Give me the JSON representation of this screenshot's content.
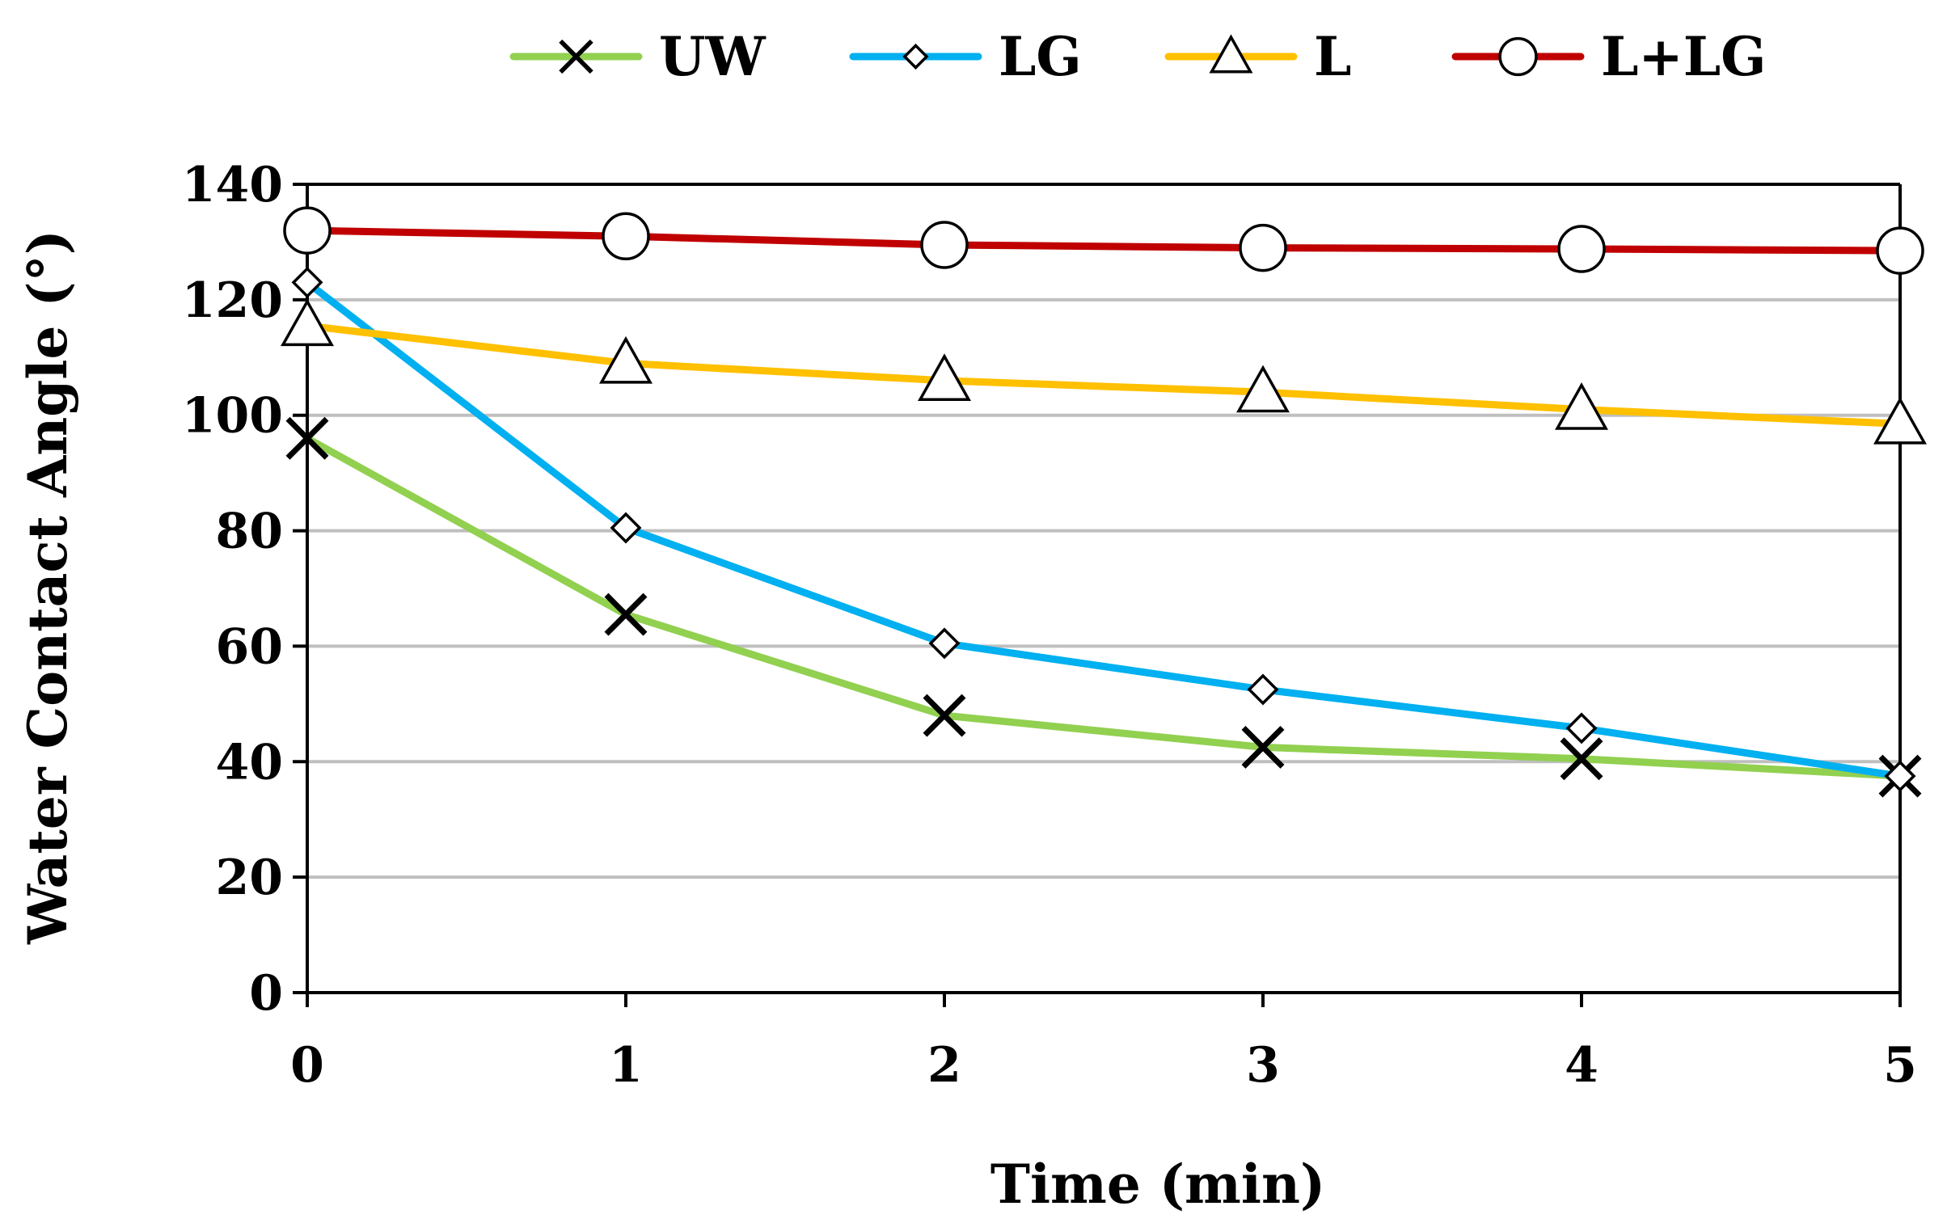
{
  "chart_data": {
    "type": "line",
    "title": "",
    "xlabel": "Time (min)",
    "ylabel": "Water Contact Angle (°)",
    "x": [
      0,
      1,
      2,
      3,
      4,
      5
    ],
    "xlim": [
      0,
      5
    ],
    "ylim": [
      0,
      140
    ],
    "xticks": [
      "0",
      "1",
      "2",
      "3",
      "4",
      "5"
    ],
    "yticks": [
      "0",
      "20",
      "40",
      "60",
      "80",
      "100",
      "120",
      "140"
    ],
    "grid": "horizontal",
    "legend_position": "top",
    "series": [
      {
        "name": "UW",
        "color": "#92d050",
        "marker": "x",
        "values": [
          96,
          65.5,
          48,
          42.5,
          40.5,
          37.5
        ]
      },
      {
        "name": "LG",
        "color": "#00b0f0",
        "marker": "diamond",
        "values": [
          123,
          80.5,
          60.5,
          52.5,
          45.8,
          37.5
        ]
      },
      {
        "name": "L",
        "color": "#ffc000",
        "marker": "triangle",
        "values": [
          115.5,
          109,
          106,
          104,
          101,
          98.5
        ]
      },
      {
        "name": "L+LG",
        "color": "#c00000",
        "marker": "circle",
        "values": [
          132,
          131,
          129.5,
          129,
          128.8,
          128.5
        ]
      }
    ]
  }
}
